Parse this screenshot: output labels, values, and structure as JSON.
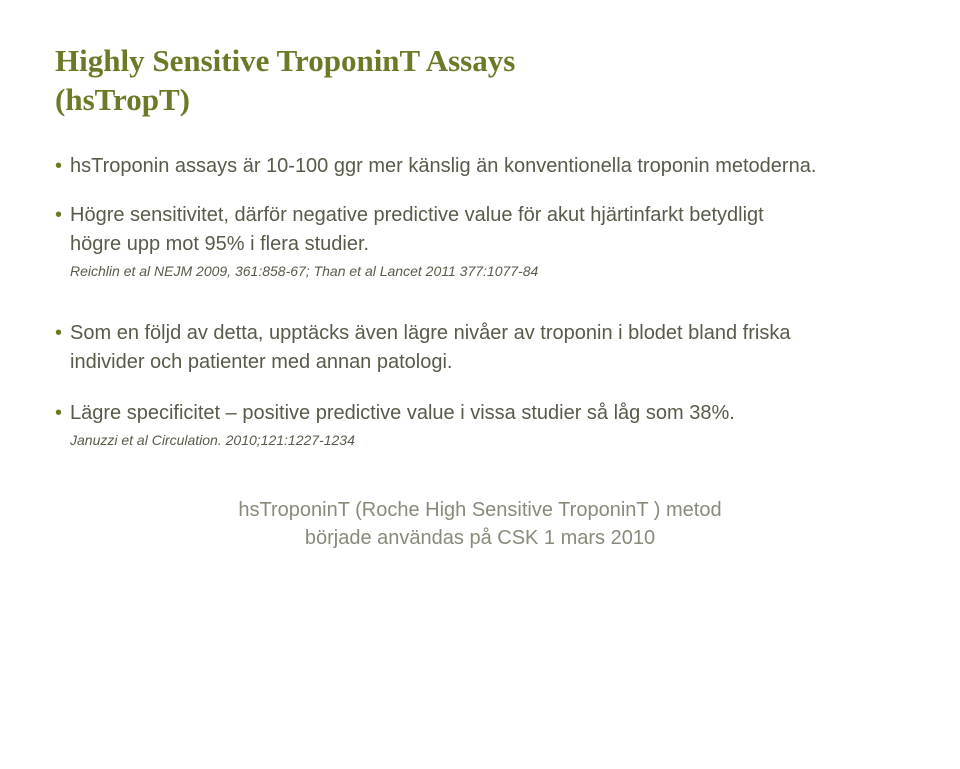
{
  "style": {
    "title_color": "#6b7a26",
    "title_fontsize": 31,
    "bullet_text_color": "#5a5a4a",
    "bullet_fontsize": 20,
    "bullet_indent_ml": 15,
    "ref_fontsize": 14,
    "ref_color": "#5a5a4a",
    "footer_color": "#8a8a7a",
    "footer_fontsize": 20,
    "dot_color": "#6b7a26",
    "dot_glyph": "•"
  },
  "title_line1": "Highly Sensitive TroponinT Assays",
  "title_line2": "(hsTropT)",
  "bullets": {
    "b1": {
      "l1": "hsTroponin assays är 10-100 ggr mer känslig än konventionella troponin metoderna."
    },
    "b2": {
      "l1": "Högre sensitivitet, därför negative predictive value för akut hjärtinfarkt betydligt",
      "l2": "högre upp mot 95% i flera studier.",
      "ref": "Reichlin et al NEJM 2009, 361:858-67;    Than et al Lancet  2011 377:1077-84"
    },
    "b3": {
      "l1": "Som en följd av detta, upptäcks även lägre nivåer av troponin i blodet bland friska",
      "l2": "individer och patienter med annan patologi."
    },
    "b4": {
      "l1": "Lägre specificitet – positive predictive value i vissa studier så låg som 38%.",
      "ref": "Januzzi et al Circulation. 2010;121:1227-1234"
    }
  },
  "footer": {
    "l1": "hsTroponinT (Roche High Sensitive TroponinT ) metod",
    "l2": "började användas på CSK 1 mars 2010"
  }
}
